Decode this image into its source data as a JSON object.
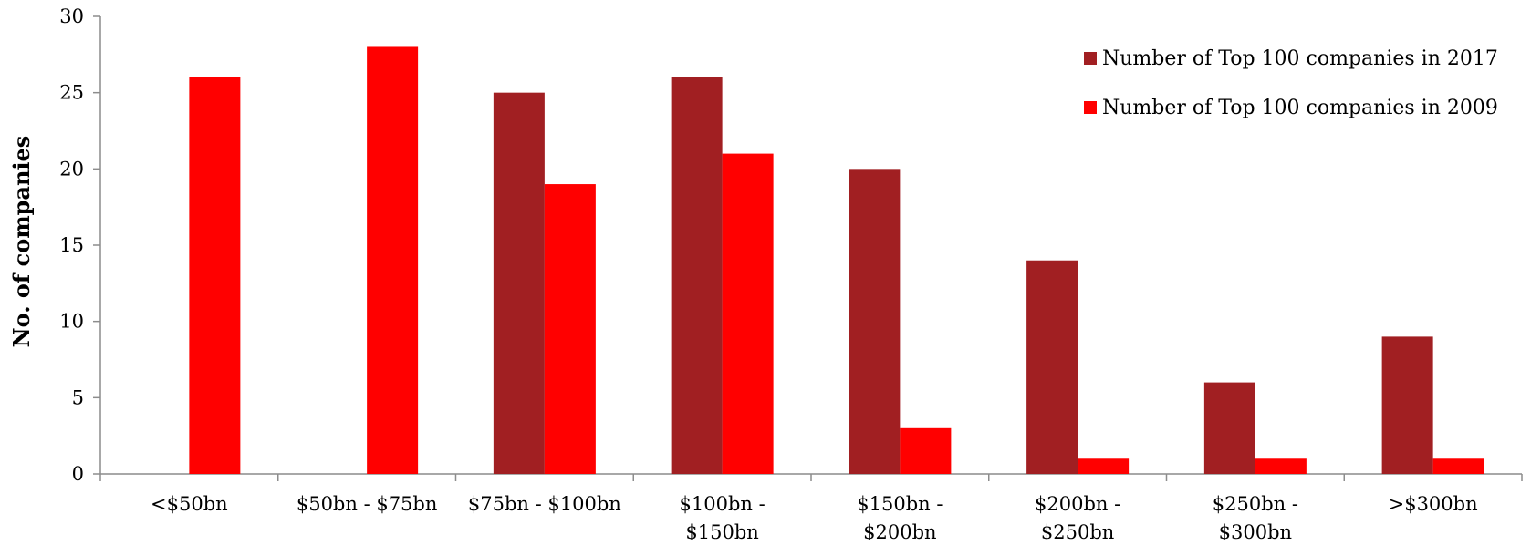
{
  "chart_data": {
    "type": "bar",
    "title": "",
    "xlabel": "",
    "ylabel": "No. of companies",
    "ylim": [
      0,
      30
    ],
    "yticks": [
      0,
      5,
      10,
      15,
      20,
      25,
      30
    ],
    "grid": false,
    "legend_position": "top-right",
    "categories": [
      [
        "<$50bn"
      ],
      [
        "$50bn - $75bn"
      ],
      [
        "$75bn - $100bn"
      ],
      [
        "$100bn -",
        "$150bn"
      ],
      [
        "$150bn -",
        "$200bn"
      ],
      [
        "$200bn -",
        "$250bn"
      ],
      [
        "$250bn -",
        "$300bn"
      ],
      [
        ">$300bn"
      ]
    ],
    "series": [
      {
        "name": "Number of Top 100 companies in 2017",
        "color": "#a11f22",
        "values": [
          0,
          0,
          25,
          26,
          20,
          14,
          6,
          9
        ]
      },
      {
        "name": "Number of Top 100 companies in 2009",
        "color": "#ff0000",
        "values": [
          26,
          28,
          19,
          21,
          3,
          1,
          1,
          1
        ]
      }
    ]
  }
}
